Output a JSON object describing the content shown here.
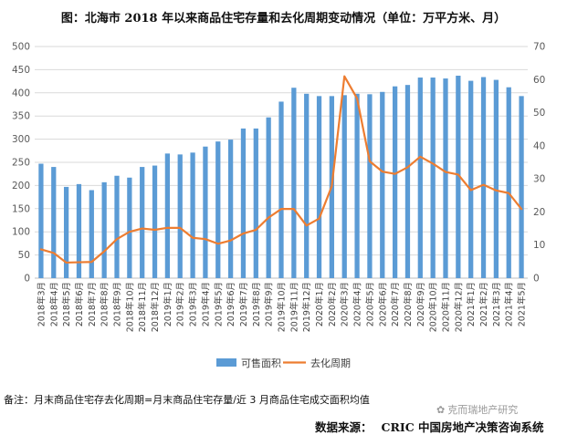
{
  "title": "图：北海市 2018 年以来商品住宅存量和去化周期变动情况（单位：万平方米、月）",
  "note": "备注：月末商品住宅存去化周期=月末商品住宅存量/近 3 月商品住宅成交面积均值",
  "source": {
    "label": "数据来源：",
    "value": "CRIC 中国房地产决策咨询系统"
  },
  "watermark": "克而瑞地产研究",
  "colors": {
    "bar": "#5B9BD5",
    "line": "#ED7D31",
    "grid": "#d9d9d9",
    "axis_text": "#595959"
  },
  "chart_data": {
    "type": "bar+line",
    "title": "图：北海市 2018 年以来商品住宅存量和去化周期变动情况（单位：万平方米、月）",
    "categories": [
      "2018年3月",
      "2018年4月",
      "2018年5月",
      "2018年6月",
      "2018年7月",
      "2018年8月",
      "2018年9月",
      "2018年10月",
      "2018年11月",
      "2018年12月",
      "2019年1月",
      "2019年2月",
      "2019年3月",
      "2019年4月",
      "2019年5月",
      "2019年6月",
      "2019年7月",
      "2019年8月",
      "2019年9月",
      "2019年10月",
      "2019年11月",
      "2019年12月",
      "2020年1月",
      "2020年2月",
      "2020年3月",
      "2020年4月",
      "2020年5月",
      "2020年6月",
      "2020年7月",
      "2020年8月",
      "2020年9月",
      "2020年10月",
      "2020年11月",
      "2020年12月",
      "2021年1月",
      "2021年2月",
      "2021年3月",
      "2021年4月",
      "2021年5月"
    ],
    "left_axis": {
      "min": 0,
      "max": 500,
      "ticks": [
        0,
        50,
        100,
        150,
        200,
        250,
        300,
        350,
        400,
        450,
        500
      ]
    },
    "right_axis": {
      "min": 0,
      "max": 70,
      "ticks": [
        0,
        10,
        20,
        30,
        40,
        50,
        60,
        70
      ]
    },
    "series": [
      {
        "name": "可售面积",
        "type": "bar",
        "axis": "left",
        "values": [
          247,
          240,
          197,
          203,
          190,
          207,
          221,
          217,
          240,
          243,
          269,
          267,
          271,
          284,
          295,
          299,
          323,
          323,
          347,
          381,
          411,
          398,
          393,
          393,
          395,
          398,
          397,
          402,
          414,
          417,
          433,
          433,
          431,
          437,
          426,
          434,
          428,
          412,
          393
        ]
      },
      {
        "name": "去化周期",
        "type": "line",
        "axis": "right",
        "values": [
          8.7,
          7.6,
          4.7,
          4.8,
          4.9,
          8.1,
          11.8,
          14.0,
          15.0,
          14.6,
          15.2,
          15.2,
          12.2,
          11.8,
          10.4,
          11.4,
          13.5,
          14.6,
          18.3,
          20.9,
          20.9,
          15.9,
          18.0,
          27.8,
          61.0,
          54.3,
          35.3,
          32.2,
          31.5,
          33.5,
          36.7,
          34.6,
          32.1,
          31.3,
          26.6,
          28.2,
          26.5,
          25.7,
          20.9
        ]
      }
    ],
    "legend": [
      "可售面积",
      "去化周期"
    ],
    "legend_position": "bottom"
  }
}
